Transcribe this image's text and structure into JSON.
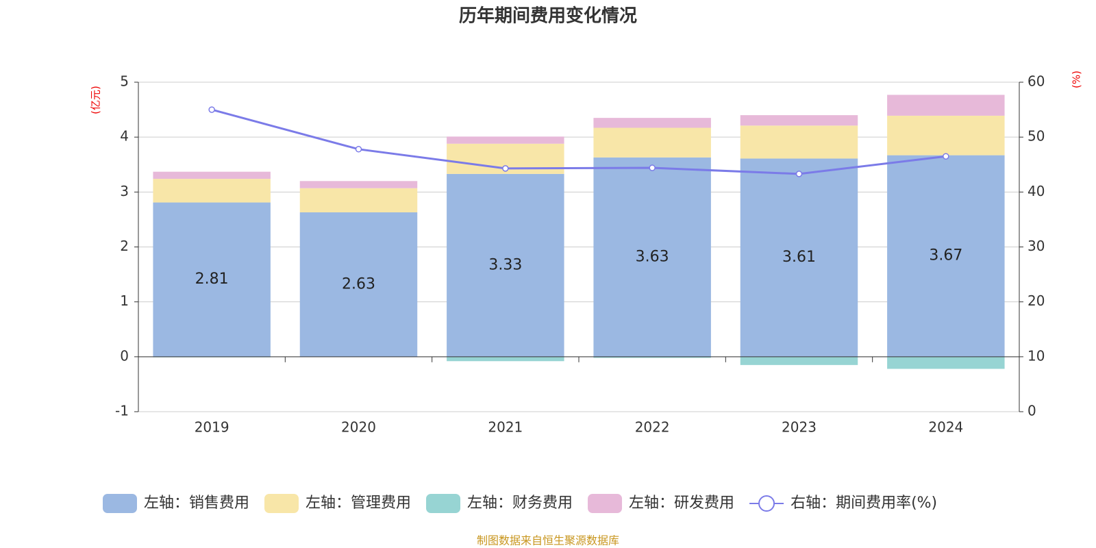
{
  "chart_data": {
    "type": "bar",
    "title": "历年期间费用变化情况",
    "y_label": "(亿元)",
    "y2_label": "(%)",
    "categories": [
      "2019",
      "2020",
      "2021",
      "2022",
      "2023",
      "2024"
    ],
    "series": [
      {
        "name": "左轴：销售费用",
        "color": "#9bb8e2",
        "values": [
          2.81,
          2.63,
          3.33,
          3.63,
          3.61,
          3.67
        ],
        "value_labels": [
          "2.81",
          "2.63",
          "3.33",
          "3.63",
          "3.61",
          "3.67"
        ]
      },
      {
        "name": "左轴：管理费用",
        "color": "#f8e6a8",
        "values": [
          0.43,
          0.44,
          0.55,
          0.54,
          0.6,
          0.72
        ]
      },
      {
        "name": "左轴：财务费用",
        "color": "#97d4d3",
        "values": [
          -0.01,
          0,
          -0.08,
          -0.02,
          -0.15,
          -0.22
        ]
      },
      {
        "name": "左轴：研发费用",
        "color": "#e7b9d9",
        "values": [
          0.13,
          0.13,
          0.13,
          0.18,
          0.19,
          0.38
        ]
      },
      {
        "name": "右轴：期间费用率(%)",
        "type": "line",
        "axis": "y2",
        "color": "#7b7be8",
        "values": [
          55.0,
          47.8,
          44.3,
          44.4,
          43.3,
          46.5
        ]
      }
    ],
    "ylim": [
      -1,
      5
    ],
    "yticks": [
      -1,
      0,
      1,
      2,
      3,
      4,
      5
    ],
    "y2lim": [
      0,
      60
    ],
    "y2ticks": [
      0,
      10,
      20,
      30,
      40,
      50,
      60
    ],
    "grid": true,
    "legend": "bottom",
    "source": "制图数据来自恒生聚源数据库"
  }
}
